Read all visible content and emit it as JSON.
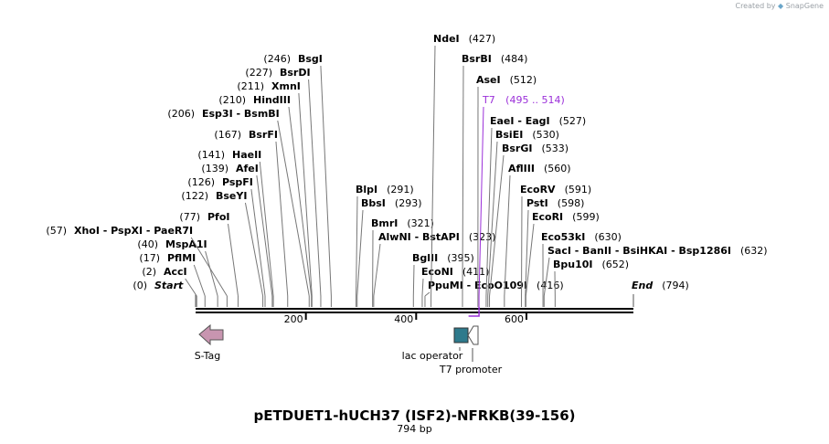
{
  "header": {
    "created_by": "Created by",
    "brand": "SnapGene"
  },
  "plasmid": {
    "name": "pETDUET1-hUCH37 (ISF2)-NFRKB(39-156)",
    "length_label": "794 bp"
  },
  "ruler": {
    "ticks": [
      200,
      400,
      600
    ]
  },
  "sites": [
    {
      "label": "Start",
      "pos_label": "(0)",
      "bp": 0,
      "italic": true
    },
    {
      "label": "End",
      "pos_label": "(794)",
      "bp": 794,
      "italic": true
    },
    {
      "label": "AccI",
      "pos_label": "(2)",
      "bp": 2
    },
    {
      "label": "PflMI",
      "pos_label": "(17)",
      "bp": 17
    },
    {
      "label": "MspA1I",
      "pos_label": "(40)",
      "bp": 40
    },
    {
      "label": "XhoI - PspXI - PaeR7I",
      "pos_label": "(57)",
      "bp": 57
    },
    {
      "label": "PfoI",
      "pos_label": "(77)",
      "bp": 77
    },
    {
      "label": "BseYI",
      "pos_label": "(122)",
      "bp": 122
    },
    {
      "label": "PspFI",
      "pos_label": "(126)",
      "bp": 126
    },
    {
      "label": "AfeI",
      "pos_label": "(139)",
      "bp": 139
    },
    {
      "label": "HaeII",
      "pos_label": "(141)",
      "bp": 141
    },
    {
      "label": "BsrFI",
      "pos_label": "(167)",
      "bp": 167
    },
    {
      "label": "Esp3I - BsmBI",
      "pos_label": "(206)",
      "bp": 206
    },
    {
      "label": "HindIII",
      "pos_label": "(210)",
      "bp": 210
    },
    {
      "label": "XmnI",
      "pos_label": "(211)",
      "bp": 211
    },
    {
      "label": "BsrDI",
      "pos_label": "(227)",
      "bp": 227
    },
    {
      "label": "BsgI",
      "pos_label": "(246)",
      "bp": 246
    },
    {
      "label": "BlpI",
      "pos_label": "(291)",
      "bp": 291
    },
    {
      "label": "BbsI",
      "pos_label": "(293)",
      "bp": 293
    },
    {
      "label": "BmrI",
      "pos_label": "(321)",
      "bp": 321
    },
    {
      "label": "AlwNI - BstAPI",
      "pos_label": "(323)",
      "bp": 323
    },
    {
      "label": "BglII",
      "pos_label": "(395)",
      "bp": 395
    },
    {
      "label": "EcoNI",
      "pos_label": "(411)",
      "bp": 411
    },
    {
      "label": "PpuMI - EcoO109I",
      "pos_label": "(416)",
      "bp": 416
    },
    {
      "label": "NdeI",
      "pos_label": "(427)",
      "bp": 427
    },
    {
      "label": "BsrBI",
      "pos_label": "(484)",
      "bp": 484
    },
    {
      "label": "AseI",
      "pos_label": "(512)",
      "bp": 512
    },
    {
      "label": "T7",
      "pos_label": "(495 .. 514)",
      "bp": 514,
      "primer": true
    },
    {
      "label": "EaeI - EagI",
      "pos_label": "(527)",
      "bp": 527
    },
    {
      "label": "BsiEI",
      "pos_label": "(530)",
      "bp": 530
    },
    {
      "label": "BsrGI",
      "pos_label": "(533)",
      "bp": 533
    },
    {
      "label": "AflIII",
      "pos_label": "(560)",
      "bp": 560
    },
    {
      "label": "EcoRV",
      "pos_label": "(591)",
      "bp": 591
    },
    {
      "label": "PstI",
      "pos_label": "(598)",
      "bp": 598
    },
    {
      "label": "EcoRI",
      "pos_label": "(599)",
      "bp": 599
    },
    {
      "label": "Eco53kI",
      "pos_label": "(630)",
      "bp": 630
    },
    {
      "label": "SacI - BanII - BsiHKAI - Bsp1286I",
      "pos_label": "(632)",
      "bp": 632
    },
    {
      "label": "Bpu10I",
      "pos_label": "(652)",
      "bp": 652
    }
  ],
  "features": [
    {
      "name": "S-Tag",
      "color": "#c895b0",
      "direction": "left"
    },
    {
      "name": "lac operator",
      "color": "#2e7a8c",
      "direction": "none"
    },
    {
      "name": "T7 promoter",
      "color": "#ffffff",
      "direction": "left"
    }
  ],
  "colors": {
    "primer": "#9b30d9",
    "line": "#000000",
    "leader": "#555555"
  }
}
